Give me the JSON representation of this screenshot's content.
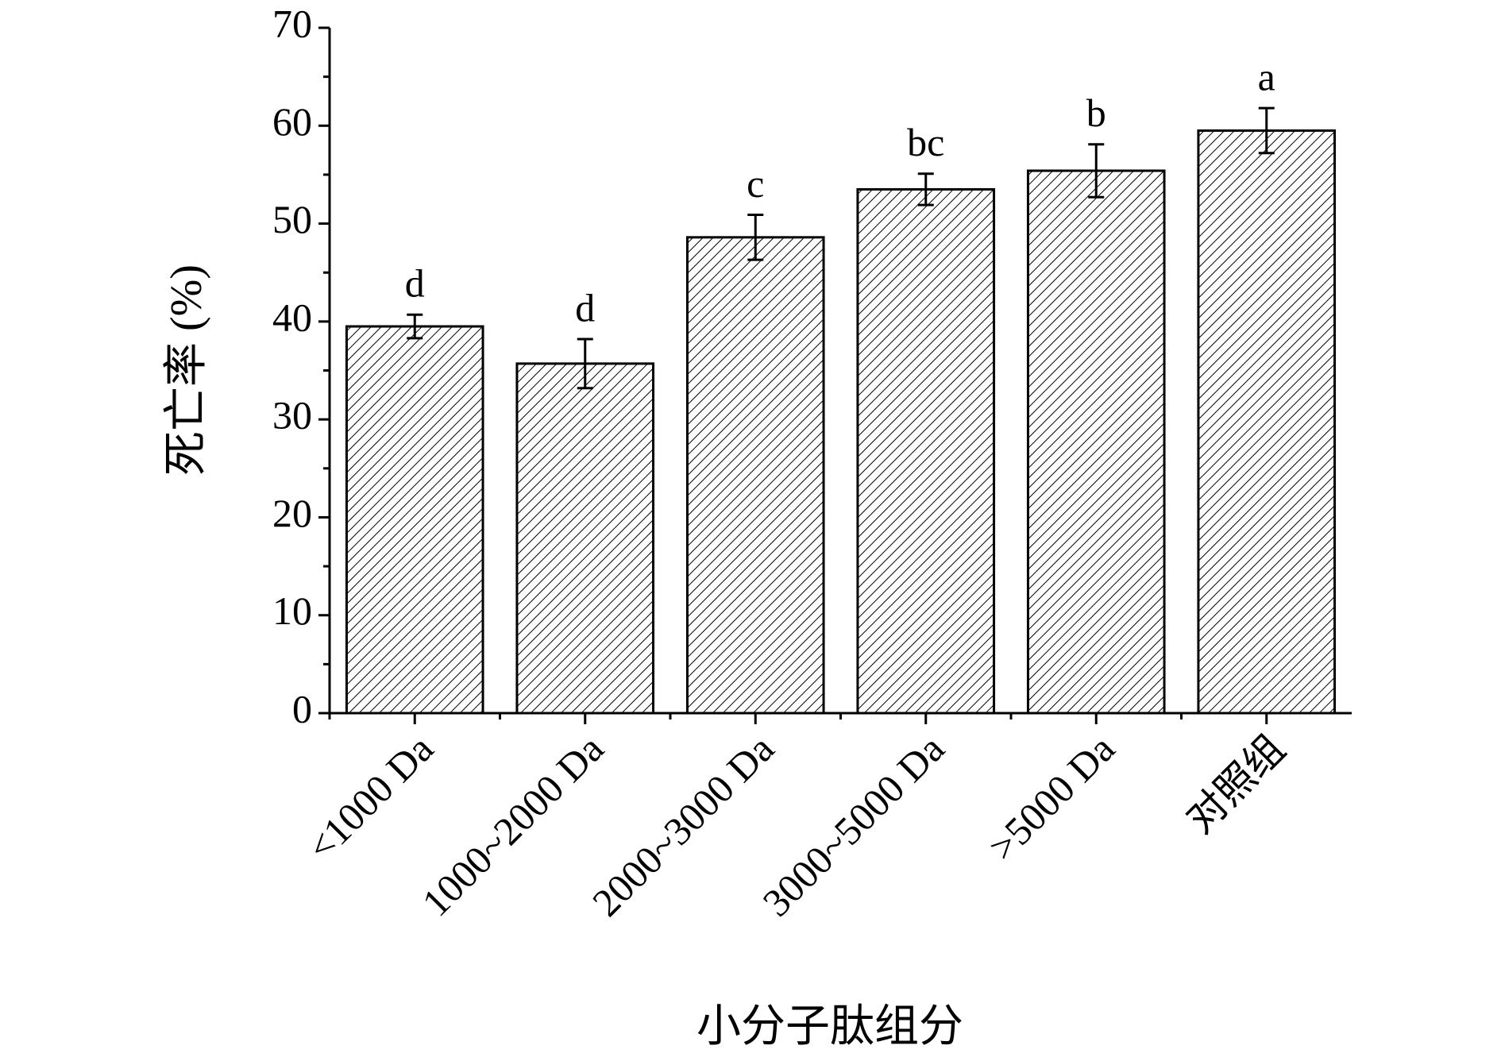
{
  "chart_data": {
    "type": "bar",
    "xlabel": "小分子肽组分",
    "ylabel": "死亡率 (%)",
    "categories": [
      "<1000 Da",
      "1000~2000 Da",
      "2000~3000 Da",
      "3000~5000 Da",
      ">5000 Da",
      "对照组"
    ],
    "values": [
      39.5,
      35.7,
      48.6,
      53.5,
      55.4,
      59.5
    ],
    "errors": [
      1.2,
      2.5,
      2.3,
      1.6,
      2.7,
      2.3
    ],
    "letters": [
      "d",
      "d",
      "c",
      "bc",
      "b",
      "a"
    ],
    "color": "#000000",
    "ylim": [
      0,
      70
    ],
    "yticks": [
      0,
      10,
      20,
      30,
      40,
      50,
      60,
      70
    ],
    "grid": false
  }
}
